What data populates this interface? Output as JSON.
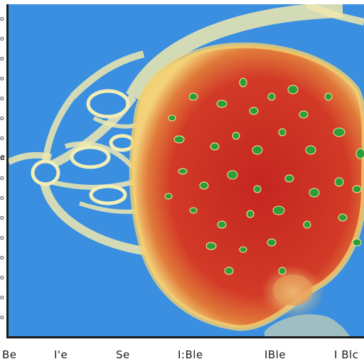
{
  "figure": {
    "background_color": "#3b8fe0",
    "blob_color": "#cc2b25",
    "rim_color": "#f0d070",
    "filament_color": "#f2ecb0",
    "speckle_color": "#2e9a3a",
    "axis_color": "#1a1a1a"
  },
  "left_marks": [
    "o",
    "o",
    "o",
    "o",
    "o",
    "o",
    "o",
    "o",
    "o",
    "o",
    "o",
    "o",
    "o",
    "o",
    "o",
    "o"
  ],
  "left_label": "e",
  "x_tick_labels": [
    "Be",
    "I'e",
    "Se",
    "I:Ble",
    "IBle",
    "I Blc"
  ]
}
